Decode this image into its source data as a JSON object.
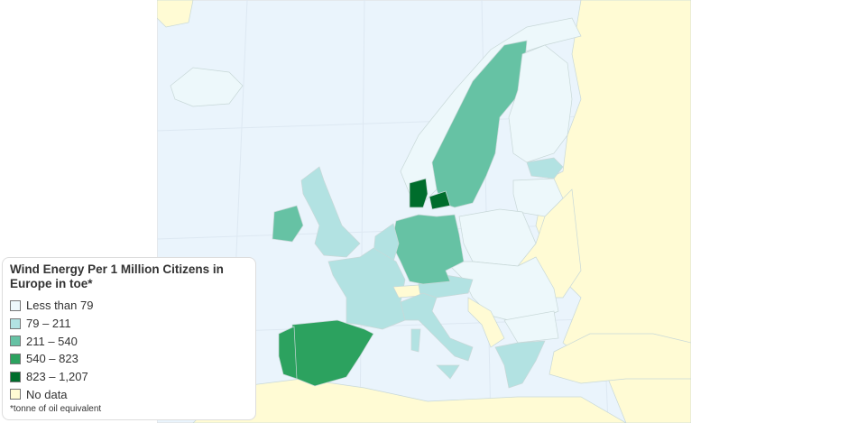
{
  "legend": {
    "title": "Wind Energy Per 1 Million Citizens in Europe in toe*",
    "items": [
      {
        "label": "Less than 79",
        "color": "#edf8fb"
      },
      {
        "label": "79 – 211",
        "color": "#b2e2e2"
      },
      {
        "label": "211 – 540",
        "color": "#66c2a4"
      },
      {
        "label": "540 – 823",
        "color": "#2ca25f"
      },
      {
        "label": "823 – 1,207",
        "color": "#006d2c"
      },
      {
        "label": "No data",
        "color": "#fffbd4"
      }
    ],
    "footnote": "*tonne of oil equivalent"
  },
  "map": {
    "sea_color": "#eaf4fc",
    "regions": [
      {
        "name": "Denmark",
        "class": "823 – 1,207"
      },
      {
        "name": "Spain",
        "class": "540 – 823"
      },
      {
        "name": "Portugal",
        "class": "540 – 823"
      },
      {
        "name": "Sweden",
        "class": "211 – 540"
      },
      {
        "name": "Germany",
        "class": "211 – 540"
      },
      {
        "name": "Ireland",
        "class": "211 – 540"
      },
      {
        "name": "United Kingdom",
        "class": "79 – 211"
      },
      {
        "name": "France",
        "class": "79 – 211"
      },
      {
        "name": "Italy",
        "class": "79 – 211"
      },
      {
        "name": "Netherlands",
        "class": "79 – 211"
      },
      {
        "name": "Austria",
        "class": "79 – 211"
      },
      {
        "name": "Greece",
        "class": "79 – 211"
      },
      {
        "name": "Estonia",
        "class": "79 – 211"
      },
      {
        "name": "Finland",
        "class": "Less than 79"
      },
      {
        "name": "Poland",
        "class": "Less than 79"
      },
      {
        "name": "Switzerland",
        "class": "No data"
      },
      {
        "name": "Russia",
        "class": "No data"
      }
    ]
  }
}
